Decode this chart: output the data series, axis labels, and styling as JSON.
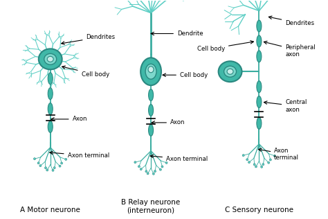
{
  "bg_color": "#ffffff",
  "teal_body": "#40b8a8",
  "teal_inner": "#7dd8cc",
  "teal_nucleus": "#c8eeea",
  "teal_axon": "#3aada0",
  "teal_dendrite": "#5ecfc5",
  "teal_outline": "#2a8880",
  "label_fontsize": 7.5,
  "annot_fontsize": 6.2,
  "labels": {
    "A": "A Motor neurone",
    "B": "B Relay neurone\n(interneuron)",
    "C": "C Sensory neurone"
  },
  "annotations": {
    "dendrites_A": "Dendrites",
    "cell_body_A": "Cell body",
    "axon_A": "Axon",
    "axon_terminal_A": "Axon terminal",
    "dendrite_B": "Dendrite",
    "cell_body_B": "Cell body",
    "axon_B": "Axon",
    "axon_terminal_B": "Axon terminal",
    "cell_body_C": "Cell body",
    "dendrites_C": "Dendrites",
    "peripheral_axon_C": "Peripheral\naxon",
    "central_axon_C": "Central\naxon",
    "axon_terminal_C": "Axon\nterminal"
  }
}
